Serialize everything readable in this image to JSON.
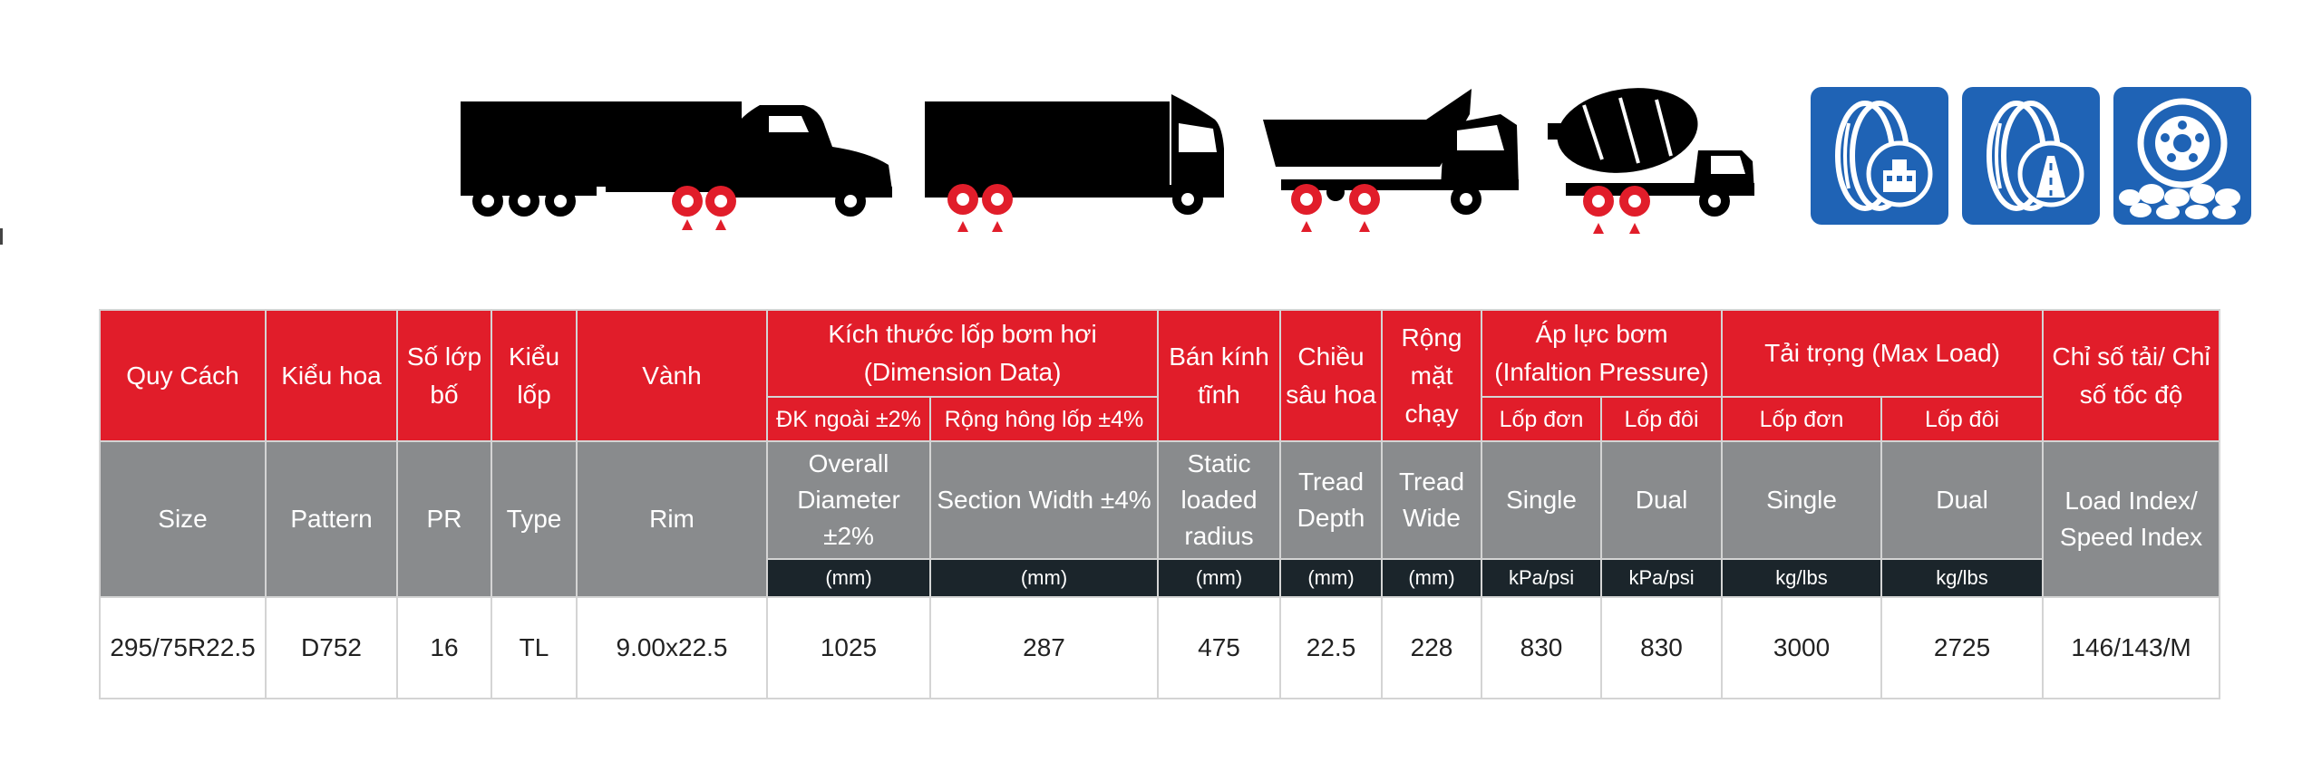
{
  "colors": {
    "header_red": "#e11d2a",
    "header_gray": "#898b8d",
    "unit_dark": "#1b252b",
    "icon_blue": "#1f63b5",
    "wheel_red": "#e11d2a"
  },
  "vehicles": [
    {
      "name": "semi-trailer-truck"
    },
    {
      "name": "box-truck"
    },
    {
      "name": "dump-truck"
    },
    {
      "name": "concrete-mixer-truck"
    }
  ],
  "usage_icons": [
    "urban-road-icon",
    "highway-icon",
    "off-road-icon"
  ],
  "table": {
    "vn_headers": {
      "size": "Quy Cách",
      "pattern": "Kiểu hoa",
      "pr": "Số lớp bố",
      "type": "Kiểu lốp",
      "rim": "Vành",
      "dimension": "Kích thước lốp bơm hơi (Dimension Data)",
      "static_radius": "Bán kính tĩnh",
      "tread_depth": "Chiều sâu hoa",
      "tread_wide": "Rộng mặt chạy",
      "pressure": "Áp lực bơm (Infaltion Pressure)",
      "load": "Tải trọng (Max Load)",
      "index": "Chỉ số tải/ Chỉ số tốc độ"
    },
    "vn_subheaders": {
      "overall_dia": "ĐK ngoài ±2%",
      "section_width": "Rộng hông lốp ±4%",
      "pressure_single": "Lốp đơn",
      "pressure_dual": "Lốp đôi",
      "load_single": "Lốp đơn",
      "load_dual": "Lốp đôi"
    },
    "en_headers": {
      "size": "Size",
      "pattern": "Pattern",
      "pr": "PR",
      "type": "Type",
      "rim": "Rim",
      "overall_dia": "Overall Diameter ±2%",
      "section_width": "Section Width ±4%",
      "static_radius": "Static loaded radius",
      "tread_depth": "Tread Depth",
      "tread_wide": "Tread Wide",
      "pressure_single": "Single",
      "pressure_dual": "Dual",
      "load_single": "Single",
      "load_dual": "Dual",
      "index": "Load Index/ Speed Index"
    },
    "units": {
      "overall_dia": "(mm)",
      "section_width": "(mm)",
      "static_radius": "(mm)",
      "tread_depth": "(mm)",
      "tread_wide": "(mm)",
      "pressure_single": "kPa/psi",
      "pressure_dual": "kPa/psi",
      "load_single": "kg/lbs",
      "load_dual": "kg/lbs"
    },
    "rows": [
      {
        "size": "295/75R22.5",
        "pattern": "D752",
        "pr": "16",
        "type": "TL",
        "rim": "9.00x22.5",
        "overall_dia": "1025",
        "section_width": "287",
        "static_radius": "475",
        "tread_depth": "22.5",
        "tread_wide": "228",
        "pressure_single": "830",
        "pressure_dual": "830",
        "load_single": "3000",
        "load_dual": "2725",
        "index": "146/143/M"
      }
    ]
  }
}
